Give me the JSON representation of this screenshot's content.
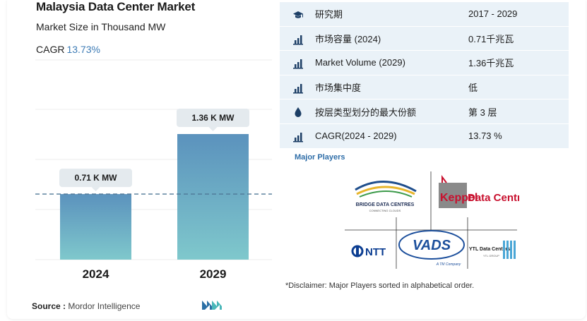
{
  "title": "Malaysia Data Center Market",
  "subtitle": "Market Size in Thousand MW",
  "cagr": {
    "label": "CAGR",
    "value": "13.73%"
  },
  "chart_data": {
    "type": "bar",
    "categories": [
      "2024",
      "2029"
    ],
    "values": [
      0.71,
      1.36
    ],
    "data_labels": [
      "0.71 K MW",
      "1.36 K MW"
    ],
    "ylabel": "",
    "xlabel": "",
    "ylim": [
      0,
      1.6
    ],
    "grid": true,
    "reference_line": 0.71,
    "colors": {
      "bar_top": "#5b92bd",
      "bar_bottom": "#7fc8cc",
      "label_box": "#e4eaee",
      "ref_line": "#4f7896"
    }
  },
  "source": {
    "label": "Source :",
    "text": "Mordor Intelligence"
  },
  "stats": [
    {
      "icon": "graduation-cap-icon",
      "key": "研究期",
      "value": "2017 - 2029"
    },
    {
      "icon": "bar-chart-icon",
      "key": "市场容量 (2024)",
      "value": "0.71千兆瓦"
    },
    {
      "icon": "bar-chart-icon",
      "key": "Market Volume (2029)",
      "value": "1.36千兆瓦"
    },
    {
      "icon": "bar-chart-icon",
      "key": "市场集中度",
      "value": "低"
    },
    {
      "icon": "drop-icon",
      "key": "按层类型划分的最大份额",
      "value": "第 3 层"
    },
    {
      "icon": "bar-chart-icon",
      "key": "CAGR(2024 - 2029)",
      "value": "13.73 %"
    }
  ],
  "players_title": "Major Players",
  "players": {
    "bridge": {
      "name": "BRIDGE DATA CENTRES",
      "tagline": "CONNECTING CLOUDS"
    },
    "keppel": {
      "name_a": "Keppel",
      "name_b": "Data Centres"
    },
    "ntt": {
      "name": "NTT"
    },
    "vads": {
      "name": "VADS",
      "sub": "A TM Company"
    },
    "ytl": {
      "name": "YTL Data Centers",
      "sub": "YTL GROUP"
    }
  },
  "disclaimer": "*Disclaimer: Major Players sorted in alphabetical order.",
  "accent": "#3d7bb5"
}
